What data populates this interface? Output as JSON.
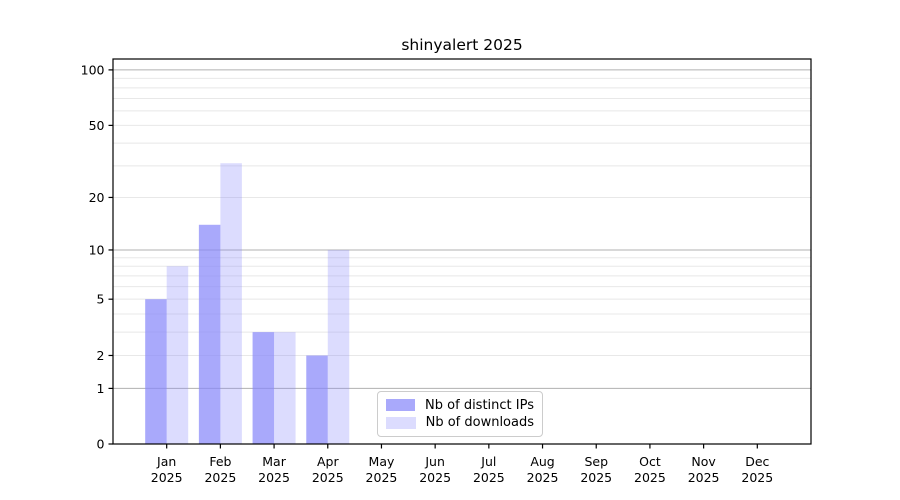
{
  "chart_data": {
    "type": "bar",
    "title": "shinyalert 2025",
    "categories": [
      "Jan",
      "Feb",
      "Mar",
      "Apr",
      "May",
      "Jun",
      "Jul",
      "Aug",
      "Sep",
      "Oct",
      "Nov",
      "Dec"
    ],
    "x_tick_year": "2025",
    "series": [
      {
        "name": "Nb of distinct IPs",
        "color_base": "#8888fa",
        "fill_opacity": 0.72,
        "apparent_color": "#aaaaff",
        "values": [
          5,
          14,
          3,
          2,
          0,
          0,
          0,
          0,
          0,
          0,
          0,
          0
        ]
      },
      {
        "name": "Nb of downloads",
        "color_base": "#8888fa",
        "fill_opacity": 0.29,
        "apparent_color": "#ddddff",
        "values": [
          8,
          31,
          3,
          10,
          0,
          0,
          0,
          0,
          0,
          0,
          0,
          0
        ]
      }
    ],
    "xlabel": "",
    "ylabel": "",
    "y_axis": {
      "scale": "log1p",
      "tick_labels": [
        "0",
        "1",
        "2",
        "5",
        "10",
        "20",
        "50",
        "100"
      ],
      "tick_values": [
        0,
        1,
        2,
        5,
        10,
        20,
        50,
        100
      ],
      "major_gridlines": [
        1,
        10,
        100
      ],
      "minor_gridlines": [
        2,
        3,
        4,
        5,
        6,
        7,
        8,
        9,
        20,
        30,
        40,
        50,
        60,
        70,
        80,
        90
      ],
      "ylim": [
        0,
        115
      ]
    },
    "legend": {
      "entries": [
        "Nb of distinct IPs",
        "Nb of downloads"
      ],
      "position": "lower center-left inside plot"
    },
    "grid": true,
    "colors": {
      "major_gridline": "#b0b0b0",
      "minor_gridline": "#e8e8e8",
      "spine": "#000000",
      "text": "#000000",
      "plot_background": "#ffffff",
      "legend_border": "#cccccc"
    }
  }
}
